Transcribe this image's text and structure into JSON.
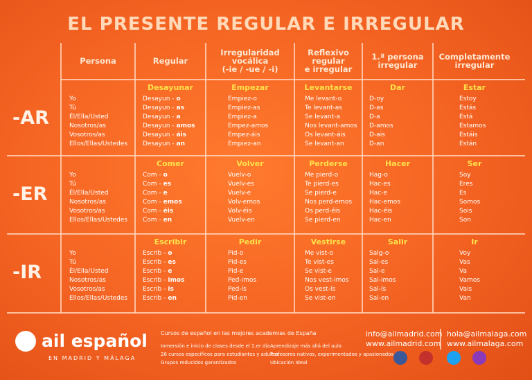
{
  "title": "EL PRESENTE REGULAR E IRREGULAR",
  "headers": [
    [
      "Persona"
    ],
    [
      "Regular"
    ],
    [
      "Irregularidad",
      "vocálica",
      "(-ie / -ue / -i)"
    ],
    [
      "Reflexivo",
      "regular",
      "e irregular"
    ],
    [
      "1.ª persona",
      "irregular"
    ],
    [
      "Completamente",
      "irregular"
    ]
  ],
  "rows": [
    {
      "label": "-AR",
      "persons": [
        "Yo",
        "Tú",
        "Él/Ella/Usted",
        "Nosotros/as",
        "Vosotros/as",
        "Ellos/Ellas/Ustedes"
      ],
      "columns": [
        {
          "verb": "Desayunar",
          "forms": [
            [
              "Desayun -",
              "o"
            ],
            [
              "Desayun -",
              "as"
            ],
            [
              "Desayun -",
              "a"
            ],
            [
              "Desayun -",
              "amos"
            ],
            [
              "Desayun -",
              "áis"
            ],
            [
              "Desayun -",
              "an"
            ]
          ]
        },
        {
          "verb": "Empezar",
          "forms": [
            "Empiez-o",
            "Empiez-as",
            "Empiez-a",
            "Empez-amos",
            "Empez-áis",
            "Empiez-an"
          ]
        },
        {
          "verb": "Levantarse",
          "forms": [
            "Me levant-o",
            "Te levant-as",
            "Se levant-a",
            "Nos levant-amos",
            "Os levant-áis",
            "Se levant-an"
          ]
        },
        {
          "verb": "Dar",
          "forms": [
            "D-oy",
            "D-as",
            "D-a",
            "D-amos",
            "D-ais",
            "D-an"
          ]
        },
        {
          "verb": "Estar",
          "forms": [
            "Estoy",
            "Estás",
            "Está",
            "Estamos",
            "Estáis",
            "Están"
          ]
        }
      ]
    },
    {
      "label": "-ER",
      "persons": [
        "Yo",
        "Tú",
        "Él/Ella/Usted",
        "Nosotros/as",
        "Vosotros/as",
        "Ellos/Ellas/Ustedes"
      ],
      "columns": [
        {
          "verb": "Comer",
          "forms": [
            [
              "Com -",
              "o"
            ],
            [
              "Com -",
              "es"
            ],
            [
              "Com -",
              "e"
            ],
            [
              "Com -",
              "emos"
            ],
            [
              "Com -",
              "éis"
            ],
            [
              "Com -",
              "en"
            ]
          ]
        },
        {
          "verb": "Volver",
          "forms": [
            "Vuelv-o",
            "Vuelv-es",
            "Vuelv-e",
            "Volv-emos",
            "Volv-éis",
            "Vuelv-en"
          ]
        },
        {
          "verb": "Perderse",
          "forms": [
            "Me pierd-o",
            "Te pierd-es",
            "Se pierd-e",
            "Nos perd-emos",
            "Os perd-éis",
            "Se pierd-en"
          ]
        },
        {
          "verb": "Hacer",
          "forms": [
            "Hag-o",
            "Hac-es",
            "Hac-e",
            "Hac-emos",
            "Hac-éis",
            "Hac-en"
          ]
        },
        {
          "verb": "Ser",
          "forms": [
            "Soy",
            "Eres",
            "Es",
            "Somos",
            "Sois",
            "Son"
          ]
        }
      ]
    },
    {
      "label": "-IR",
      "persons": [
        "Yo",
        "Tú",
        "Él/Ella/Usted",
        "Nosotros/as",
        "Vosotros/as",
        "Ellos/Ellas/Ustedes"
      ],
      "columns": [
        {
          "verb": "Escribir",
          "forms": [
            [
              "Escrib -",
              "o"
            ],
            [
              "Escrib -",
              "es"
            ],
            [
              "Escrib -",
              "e"
            ],
            [
              "Escrib -",
              "imos"
            ],
            [
              "Escrib -",
              "is"
            ],
            [
              "Escrib -",
              "en"
            ]
          ]
        },
        {
          "verb": "Pedir",
          "forms": [
            "Pid-o",
            "Pid-es",
            "Pid-e",
            "Ped-imos",
            "Ped-ís",
            "Pid-en"
          ]
        },
        {
          "verb": "Vestirse",
          "forms": [
            "Me vist-o",
            "Te vist-es",
            "Se vist-e",
            "Nos vest-imos",
            "Os vest-ís",
            "Se vist-en"
          ]
        },
        {
          "verb": "Salir",
          "forms": [
            "Salg-o",
            "Sal-es",
            "Sal-e",
            "Sal-imos",
            "Sal-ís",
            "Sal-en"
          ]
        },
        {
          "verb": "Ir",
          "forms": [
            "Voy",
            "Vas",
            "Va",
            "Vamos",
            "Vais",
            "Van"
          ]
        }
      ]
    }
  ],
  "footer": {
    "logo": "ail español",
    "tagline": "EN MADRID Y MÁLAGA",
    "heading": "Cursos de español en las mejores academias de España",
    "bullets": [
      "Inmersión e inicio de clases desde el 1.er día",
      "26 cursos específicos para estudiantes y adultos",
      "Grupos reducidos garantizados",
      "Aprendizaje más allá del aula",
      "Profesores nativos, experimentados y apasionados",
      "Ubicación ideal"
    ],
    "contacts": [
      [
        "info@ailmadrid.com",
        "www.ailmadrid.com"
      ],
      [
        "hola@ailmalaga.com",
        "www.ailmalaga.com"
      ]
    ]
  }
}
